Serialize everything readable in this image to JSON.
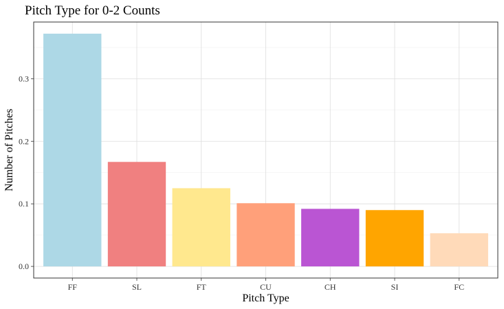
{
  "chart_data": {
    "type": "bar",
    "title": "Pitch Type for 0-2 Counts",
    "xlabel": "Pitch Type",
    "ylabel": "Number of Pitches",
    "categories": [
      "FF",
      "SL",
      "FT",
      "CU",
      "CH",
      "SI",
      "FC"
    ],
    "values": [
      0.372,
      0.167,
      0.125,
      0.101,
      0.092,
      0.09,
      0.053
    ],
    "colors": [
      "#ADD8E6",
      "#F08080",
      "#FFE88E",
      "#FFA07A",
      "#BA55D3",
      "#FFA500",
      "#FFDAB9"
    ],
    "ylim": [
      -0.0186,
      0.3906
    ],
    "yticks": [
      0.0,
      0.1,
      0.2,
      0.3
    ],
    "ytick_labels": [
      "0.0",
      "0.1",
      "0.2",
      "0.3"
    ],
    "grid": true,
    "legend": "none"
  }
}
